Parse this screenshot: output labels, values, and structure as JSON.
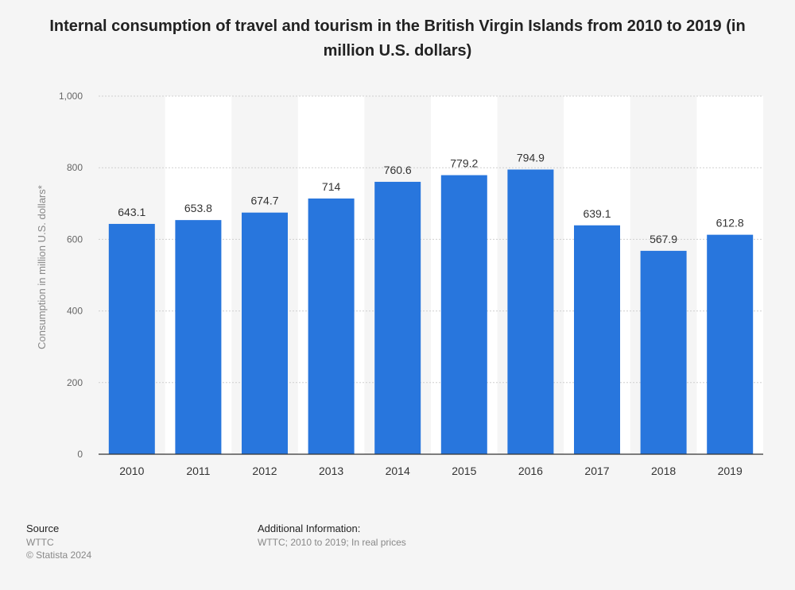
{
  "chart_data": {
    "type": "bar",
    "title": "Internal consumption of travel and tourism in the British Virgin Islands from 2010 to 2019 (in million U.S. dollars)",
    "xlabel": "",
    "ylabel": "Consumption in million U.S. dollars*",
    "categories": [
      "2010",
      "2011",
      "2012",
      "2013",
      "2014",
      "2015",
      "2016",
      "2017",
      "2018",
      "2019"
    ],
    "values": [
      643.1,
      653.8,
      674.7,
      714,
      760.6,
      779.2,
      794.9,
      639.1,
      567.9,
      612.8
    ],
    "value_labels": [
      "643.1",
      "653.8",
      "674.7",
      "714",
      "760.6",
      "779.2",
      "794.9",
      "639.1",
      "567.9",
      "612.8"
    ],
    "ylim": [
      0,
      1000
    ],
    "yticks": [
      0,
      200,
      400,
      600,
      800,
      1000
    ],
    "ytick_labels": [
      "0",
      "200",
      "400",
      "600",
      "800",
      "1,000"
    ],
    "grid": true,
    "bar_color": "#2876dd",
    "band_color": "#ffffff"
  },
  "footer": {
    "source_heading": "Source",
    "source_name": "WTTC",
    "copyright": "© Statista 2024",
    "additional_heading": "Additional Information:",
    "additional_text": "WTTC; 2010 to 2019; In real prices"
  }
}
